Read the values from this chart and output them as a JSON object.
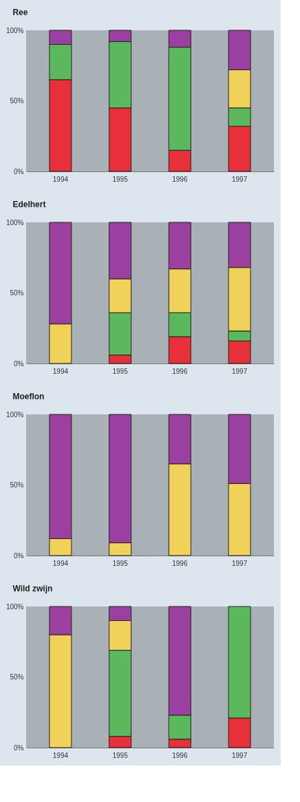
{
  "chart_data": [
    {
      "type": "bar",
      "title": "Ree",
      "stacked": true,
      "categories": [
        "1994",
        "1995",
        "1996",
        "1997"
      ],
      "ylim": [
        0,
        100
      ],
      "yticks": [
        {
          "value": 0,
          "label": "0%"
        },
        {
          "value": 50,
          "label": "50%"
        },
        {
          "value": 100,
          "label": "100%"
        }
      ],
      "grid": false,
      "legend": false,
      "series": [
        {
          "color": "#e8303a",
          "values": [
            65,
            45,
            15,
            32
          ]
        },
        {
          "color": "#5cb85c",
          "values": [
            25,
            47,
            73,
            13
          ]
        },
        {
          "color": "#f0d25a",
          "values": [
            null,
            null,
            null,
            27
          ]
        },
        {
          "color": "#9b3fa0",
          "values": [
            10,
            8,
            12,
            28
          ]
        }
      ]
    },
    {
      "type": "bar",
      "title": "Edelhert",
      "stacked": true,
      "categories": [
        "1994",
        "1995",
        "1996",
        "1997"
      ],
      "ylim": [
        0,
        100
      ],
      "yticks": [
        {
          "value": 0,
          "label": "0%"
        },
        {
          "value": 50,
          "label": "50%"
        },
        {
          "value": 100,
          "label": "100%"
        }
      ],
      "grid": false,
      "legend": false,
      "series": [
        {
          "color": "#e8303a",
          "values": [
            null,
            6,
            19,
            16
          ]
        },
        {
          "color": "#5cb85c",
          "values": [
            null,
            30,
            17,
            7
          ]
        },
        {
          "color": "#f0d25a",
          "values": [
            28,
            24,
            31,
            45
          ]
        },
        {
          "color": "#9b3fa0",
          "values": [
            72,
            40,
            33,
            32
          ]
        }
      ]
    },
    {
      "type": "bar",
      "title": "Moeflon",
      "stacked": true,
      "categories": [
        "1994",
        "1995",
        "1996",
        "1997"
      ],
      "ylim": [
        0,
        100
      ],
      "yticks": [
        {
          "value": 0,
          "label": "0%"
        },
        {
          "value": 50,
          "label": "50%"
        },
        {
          "value": 100,
          "label": "100%"
        }
      ],
      "grid": false,
      "legend": false,
      "series": [
        {
          "color": "#f0d25a",
          "values": [
            12,
            9,
            65,
            51
          ]
        },
        {
          "color": "#9b3fa0",
          "values": [
            88,
            91,
            35,
            49
          ]
        }
      ]
    },
    {
      "type": "bar",
      "title": "Wild zwijn",
      "stacked": true,
      "categories": [
        "1994",
        "1995",
        "1996",
        "1997"
      ],
      "ylim": [
        0,
        100
      ],
      "yticks": [
        {
          "value": 0,
          "label": "0%"
        },
        {
          "value": 50,
          "label": "50%"
        },
        {
          "value": 100,
          "label": "100%"
        }
      ],
      "grid": false,
      "legend": false,
      "series": [
        {
          "color": "#e8303a",
          "values": [
            null,
            8,
            6,
            21
          ]
        },
        {
          "color": "#5cb85c",
          "values": [
            null,
            61,
            17,
            79
          ]
        },
        {
          "color": "#f0d25a",
          "values": [
            80,
            21,
            null,
            null
          ]
        },
        {
          "color": "#9b3fa0",
          "values": [
            20,
            10,
            77,
            null
          ]
        }
      ]
    }
  ]
}
